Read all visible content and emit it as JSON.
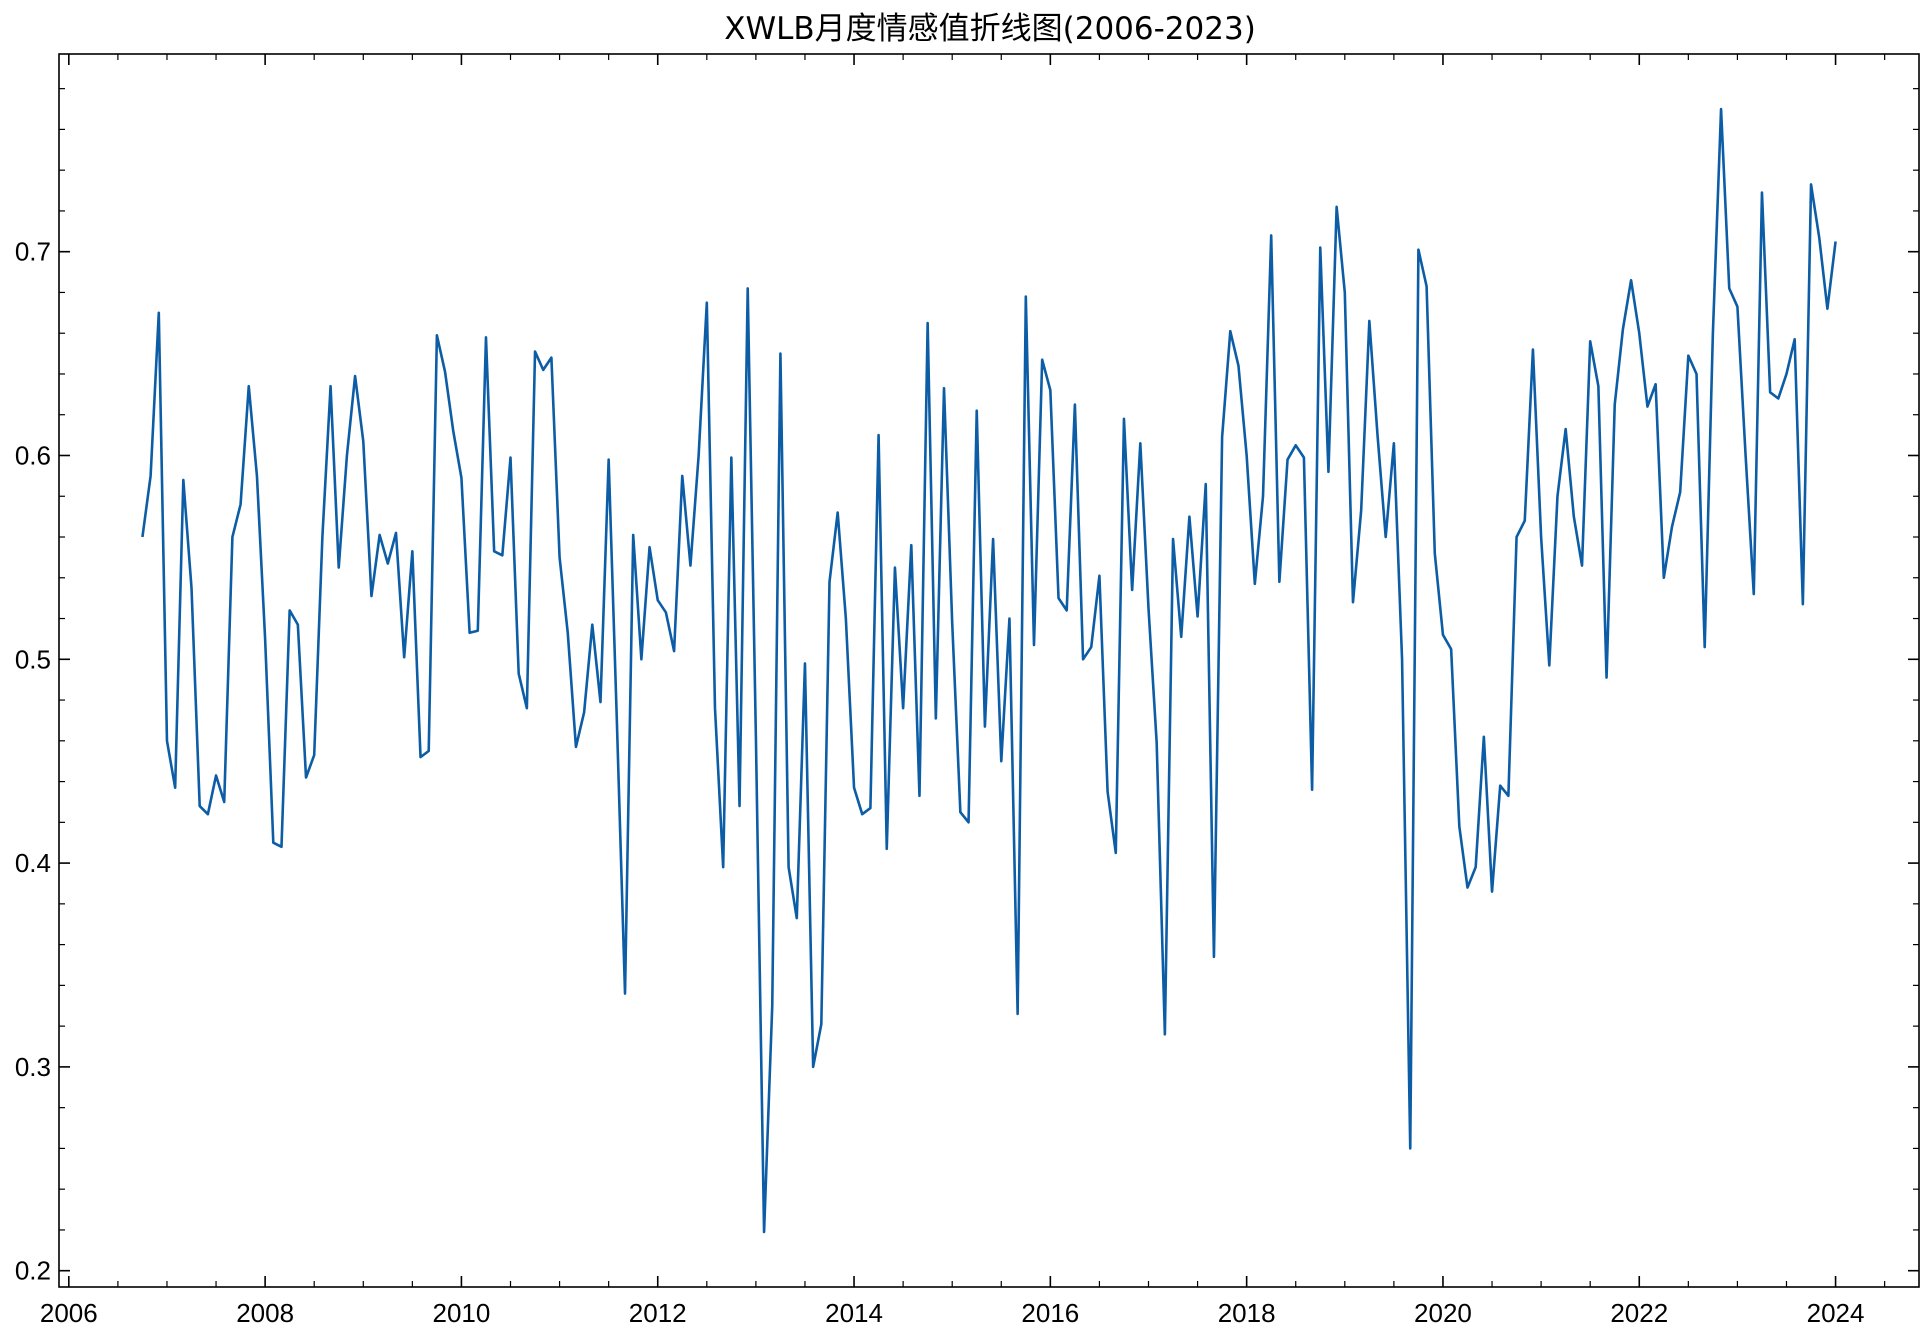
{
  "chart_data": {
    "type": "line",
    "title": "XWLB月度情感值折线图(2006-2023)",
    "xlabel": "",
    "ylabel": "",
    "xlim": [
      2005.9,
      2024.85
    ],
    "ylim": [
      0.192,
      0.797
    ],
    "x_ticks": [
      "2006",
      "2008",
      "2010",
      "2012",
      "2014",
      "2016",
      "2018",
      "2020",
      "2022",
      "2024"
    ],
    "y_ticks": [
      "0.2",
      "0.3",
      "0.4",
      "0.5",
      "0.6",
      "0.7"
    ],
    "grid": false,
    "line_color": "#0c5da5",
    "series": [
      {
        "x_start": "2006-10",
        "x_step": "1 month",
        "values": [
          0.56,
          0.59,
          0.67,
          0.46,
          0.437,
          0.588,
          0.535,
          0.428,
          0.424,
          0.443,
          0.43,
          0.56,
          0.576,
          0.634,
          0.59,
          0.51,
          0.41,
          0.408,
          0.524,
          0.517,
          0.442,
          0.453,
          0.56,
          0.634,
          0.545,
          0.6,
          0.639,
          0.607,
          0.531,
          0.561,
          0.547,
          0.562,
          0.501,
          0.553,
          0.452,
          0.455,
          0.659,
          0.641,
          0.612,
          0.589,
          0.513,
          0.514,
          0.658,
          0.553,
          0.551,
          0.599,
          0.493,
          0.476,
          0.651,
          0.642,
          0.648,
          0.55,
          0.513,
          0.457,
          0.474,
          0.517,
          0.479,
          0.598,
          0.47,
          0.336,
          0.561,
          0.5,
          0.555,
          0.529,
          0.523,
          0.504,
          0.59,
          0.546,
          0.6,
          0.675,
          0.476,
          0.398,
          0.599,
          0.428,
          0.682,
          0.462,
          0.219,
          0.33,
          0.65,
          0.398,
          0.373,
          0.498,
          0.3,
          0.321,
          0.538,
          0.572,
          0.52,
          0.437,
          0.424,
          0.427,
          0.61,
          0.407,
          0.545,
          0.476,
          0.556,
          0.433,
          0.665,
          0.471,
          0.633,
          0.518,
          0.425,
          0.42,
          0.622,
          0.467,
          0.559,
          0.45,
          0.52,
          0.326,
          0.678,
          0.507,
          0.647,
          0.632,
          0.53,
          0.524,
          0.625,
          0.5,
          0.506,
          0.541,
          0.435,
          0.405,
          0.618,
          0.534,
          0.606,
          0.525,
          0.459,
          0.316,
          0.559,
          0.511,
          0.57,
          0.521,
          0.586,
          0.354,
          0.609,
          0.661,
          0.644,
          0.6,
          0.537,
          0.58,
          0.708,
          0.538,
          0.598,
          0.605,
          0.599,
          0.436,
          0.702,
          0.592,
          0.722,
          0.68,
          0.528,
          0.573,
          0.666,
          0.61,
          0.56,
          0.606,
          0.5,
          0.26,
          0.701,
          0.683,
          0.552,
          0.512,
          0.505,
          0.418,
          0.388,
          0.398,
          0.462,
          0.386,
          0.438,
          0.433,
          0.56,
          0.568,
          0.652,
          0.56,
          0.497,
          0.58,
          0.613,
          0.57,
          0.546,
          0.656,
          0.634,
          0.491,
          0.625,
          0.662,
          0.686,
          0.66,
          0.624,
          0.635,
          0.54,
          0.565,
          0.582,
          0.649,
          0.64,
          0.506,
          0.66,
          0.77,
          0.682,
          0.673,
          0.6,
          0.532,
          0.729,
          0.631,
          0.628,
          0.64,
          0.657,
          0.527,
          0.733,
          0.707,
          0.672,
          0.705
        ]
      }
    ]
  }
}
